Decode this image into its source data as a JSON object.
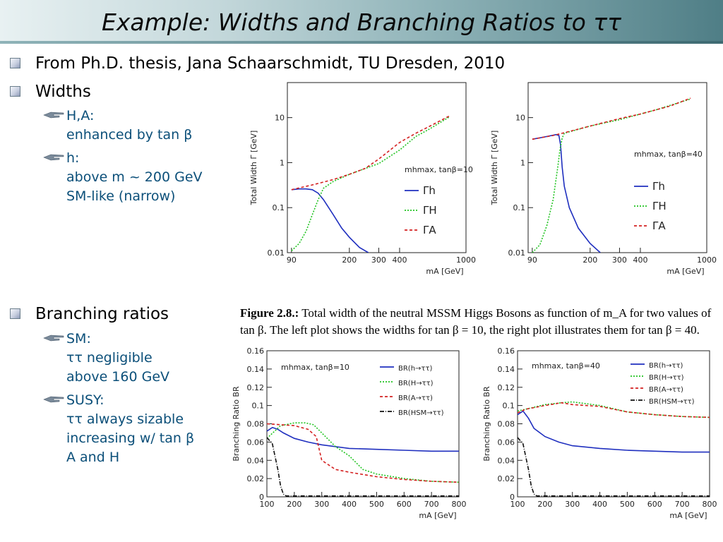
{
  "slide": {
    "title": "Example: Widths and Branching Ratios to ττ"
  },
  "bullets": {
    "source": "From Ph.D. thesis, Jana Schaarschmidt, TU Dresden, 2010",
    "widths": "Widths",
    "widths_sub": [
      {
        "line1": "H,A:",
        "line2": "enhanced by tan β"
      },
      {
        "line1": "h:",
        "line2": "above m ~ 200 GeV",
        "line3": "SM-like (narrow)"
      }
    ],
    "br": "Branching ratios",
    "br_sub": [
      {
        "line1": "SM:",
        "line2": "ττ negligible",
        "line3": "above 160 GeV"
      },
      {
        "line1": "SUSY:",
        "line2": "ττ always sizable",
        "line3": "increasing w/ tan β",
        "line4": "A and H"
      }
    ]
  },
  "caption": {
    "label": "Figure 2.8.:",
    "text": " Total width of the neutral MSSM Higgs Bosons as function of m_A for two values of tan β. The left plot shows the widths for tan β = 10, the right plot illustrates them for tan β = 40."
  },
  "colors": {
    "h": "#1f2fbf",
    "H": "#22c422",
    "A": "#d42020",
    "SM": "#111111"
  },
  "chart_data": [
    {
      "type": "line",
      "xlabel": "m_A [GeV]",
      "ylabel": "Total Width Γ [GeV]",
      "xscale": "log",
      "yscale": "log",
      "xlim": [
        85,
        1000
      ],
      "ylim": [
        0.01,
        60
      ],
      "xticks": [
        90,
        200,
        300,
        400,
        1000
      ],
      "yticks": [
        0.01,
        0.1,
        1,
        10
      ],
      "annotation": "m_h^max, tanβ=10",
      "legend_position": "right",
      "series": [
        {
          "name": "Γ_h",
          "x": [
            90,
            100,
            110,
            120,
            130,
            140,
            160,
            180,
            200,
            230,
            260
          ],
          "y": [
            0.25,
            0.26,
            0.26,
            0.25,
            0.21,
            0.15,
            0.07,
            0.035,
            0.022,
            0.013,
            0.01
          ]
        },
        {
          "name": "Γ_H",
          "x": [
            90,
            100,
            110,
            120,
            130,
            140,
            160,
            200,
            300,
            400,
            500,
            600,
            800
          ],
          "y": [
            0.011,
            0.016,
            0.03,
            0.07,
            0.15,
            0.27,
            0.38,
            0.55,
            0.95,
            1.9,
            3.8,
            5.5,
            10.5
          ]
        },
        {
          "name": "Γ_A",
          "x": [
            90,
            120,
            160,
            200,
            250,
            300,
            400,
            500,
            600,
            800
          ],
          "y": [
            0.25,
            0.32,
            0.42,
            0.55,
            0.75,
            1.2,
            2.8,
            4.5,
            6.3,
            11
          ]
        }
      ]
    },
    {
      "type": "line",
      "xlabel": "m_A [GeV]",
      "ylabel": "Total Width Γ [GeV]",
      "xscale": "log",
      "yscale": "log",
      "xlim": [
        85,
        1000
      ],
      "ylim": [
        0.01,
        60
      ],
      "xticks": [
        90,
        200,
        300,
        400,
        1000
      ],
      "yticks": [
        0.01,
        0.1,
        1,
        10
      ],
      "annotation": "m_h^max, tanβ=40",
      "legend_position": "right",
      "series": [
        {
          "name": "Γ_h",
          "x": [
            90,
            110,
            125,
            130,
            133,
            136,
            140,
            150,
            170,
            200,
            230
          ],
          "y": [
            3.3,
            3.8,
            4.2,
            4.0,
            2.5,
            0.8,
            0.3,
            0.1,
            0.035,
            0.016,
            0.01
          ]
        },
        {
          "name": "Γ_H",
          "x": [
            90,
            100,
            110,
            120,
            128,
            132,
            136,
            140,
            200,
            300,
            500,
            800
          ],
          "y": [
            0.01,
            0.015,
            0.04,
            0.15,
            0.8,
            2,
            3.5,
            4.5,
            6.5,
            9,
            15,
            26
          ]
        },
        {
          "name": "Γ_A",
          "x": [
            90,
            120,
            140,
            200,
            300,
            400,
            500,
            600,
            800
          ],
          "y": [
            3.3,
            4.0,
            4.6,
            6.5,
            9.5,
            12,
            15,
            18,
            27
          ]
        }
      ]
    },
    {
      "type": "line",
      "xlabel": "m_A [GeV]",
      "ylabel": "Branching Ratio BR",
      "xlim": [
        100,
        800
      ],
      "ylim": [
        0,
        0.16
      ],
      "xticks": [
        100,
        200,
        300,
        400,
        500,
        600,
        700,
        800
      ],
      "yticks": [
        0,
        0.02,
        0.04,
        0.06,
        0.08,
        0.1,
        0.12,
        0.14,
        0.16
      ],
      "annotation": "m_h^max, tanβ=10",
      "legend_position": "top-right",
      "series": [
        {
          "name": "BR(h→ττ)",
          "x": [
            100,
            120,
            140,
            160,
            200,
            250,
            300,
            400,
            500,
            600,
            700,
            800
          ],
          "y": [
            0.072,
            0.076,
            0.074,
            0.07,
            0.064,
            0.06,
            0.057,
            0.053,
            0.052,
            0.051,
            0.05,
            0.05
          ]
        },
        {
          "name": "BR(H→ττ)",
          "x": [
            100,
            150,
            200,
            240,
            270,
            300,
            350,
            400,
            450,
            500,
            600,
            700,
            800
          ],
          "y": [
            0.064,
            0.078,
            0.081,
            0.081,
            0.079,
            0.07,
            0.055,
            0.045,
            0.03,
            0.025,
            0.02,
            0.017,
            0.016
          ]
        },
        {
          "name": "BR(A→ττ)",
          "x": [
            100,
            150,
            200,
            250,
            280,
            300,
            350,
            400,
            500,
            600,
            700,
            800
          ],
          "y": [
            0.08,
            0.079,
            0.078,
            0.074,
            0.066,
            0.04,
            0.03,
            0.027,
            0.022,
            0.019,
            0.017,
            0.016
          ]
        },
        {
          "name": "BR(H^SM→ττ)",
          "x": [
            100,
            120,
            140,
            150,
            160,
            170,
            200,
            400,
            800
          ],
          "y": [
            0.065,
            0.058,
            0.03,
            0.012,
            0.003,
            0.001,
            0.001,
            0.001,
            0.001
          ]
        }
      ]
    },
    {
      "type": "line",
      "xlabel": "m_A [GeV]",
      "ylabel": "Branching Ratio BR",
      "xlim": [
        100,
        800
      ],
      "ylim": [
        0,
        0.16
      ],
      "xticks": [
        100,
        200,
        300,
        400,
        500,
        600,
        700,
        800
      ],
      "yticks": [
        0,
        0.02,
        0.04,
        0.06,
        0.08,
        0.1,
        0.12,
        0.14,
        0.16
      ],
      "annotation": "m_h^max, tanβ=40",
      "legend_position": "top-right",
      "series": [
        {
          "name": "BR(h→ττ)",
          "x": [
            100,
            120,
            140,
            160,
            200,
            250,
            300,
            400,
            500,
            600,
            700,
            800
          ],
          "y": [
            0.09,
            0.094,
            0.086,
            0.075,
            0.066,
            0.06,
            0.056,
            0.053,
            0.051,
            0.05,
            0.049,
            0.049
          ]
        },
        {
          "name": "BR(H→ττ)",
          "x": [
            100,
            130,
            200,
            260,
            300,
            350,
            400,
            500,
            600,
            700,
            800
          ],
          "y": [
            0.094,
            0.096,
            0.101,
            0.103,
            0.104,
            0.102,
            0.1,
            0.093,
            0.09,
            0.088,
            0.087
          ]
        },
        {
          "name": "BR(A→ττ)",
          "x": [
            100,
            130,
            200,
            260,
            300,
            350,
            400,
            500,
            600,
            700,
            800
          ],
          "y": [
            0.092,
            0.096,
            0.1,
            0.103,
            0.101,
            0.1,
            0.099,
            0.093,
            0.09,
            0.088,
            0.087
          ]
        },
        {
          "name": "BR(H^SM→ττ)",
          "x": [
            100,
            120,
            140,
            150,
            160,
            170,
            200,
            400,
            800
          ],
          "y": [
            0.065,
            0.058,
            0.03,
            0.012,
            0.003,
            0.001,
            0.001,
            0.001,
            0.001
          ]
        }
      ]
    }
  ]
}
